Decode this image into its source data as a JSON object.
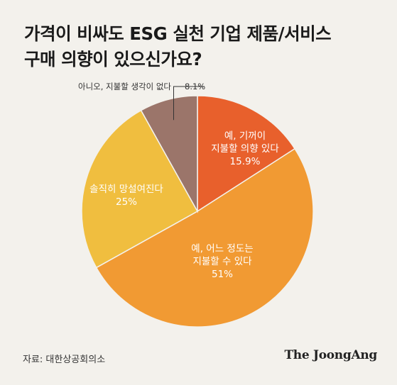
{
  "title_lines": [
    "가격이 비싸도 ESG 실천 기업 제품/서비스",
    "구매 의향이 있으신가요?"
  ],
  "source": "자료: 대한상공회의소",
  "brand": "The JoongAng",
  "colors": {
    "background": "#f3f1ec"
  },
  "chart_data": {
    "type": "pie",
    "title": "가격이 비싸도 ESG 실천 기업 제품/서비스 구매 의향이 있으신가요?",
    "slices": [
      {
        "label_lines": [
          "예, 기꺼이",
          "지불할 의향 있다"
        ],
        "value": 15.9,
        "value_label": "15.9%",
        "color": "#e8602c",
        "label_color": "#ffffff"
      },
      {
        "label_lines": [
          "예, 어느 정도는",
          "지불할 수 있다"
        ],
        "value": 51,
        "value_label": "51%",
        "color": "#f19a33",
        "label_color": "#ffffff"
      },
      {
        "label_lines": [
          "솔직히 망설여진다"
        ],
        "value": 25,
        "value_label": "25%",
        "color": "#f0be3f",
        "label_color": "#ffffff"
      },
      {
        "label_lines": [
          "아니오, 지불할 생각이 없다"
        ],
        "value": 8.1,
        "value_label": "8.1%",
        "color": "#9b756a",
        "label_color": "#333333",
        "outside_label": true
      }
    ],
    "start_angle": "12 o'clock",
    "direction": "clockwise",
    "legend": "none"
  }
}
